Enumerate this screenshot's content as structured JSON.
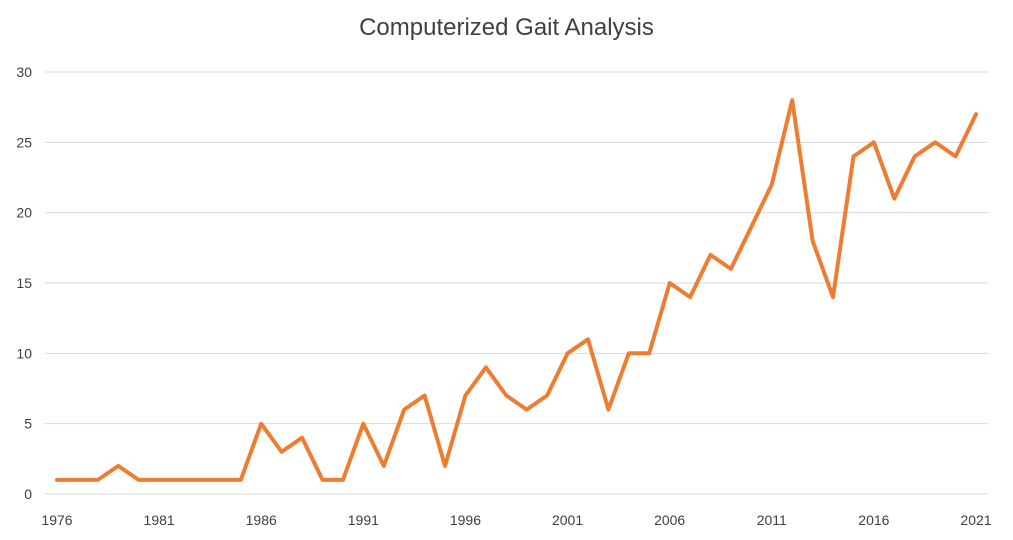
{
  "chart_data": {
    "type": "line",
    "title": "Computerized Gait Analysis",
    "xlabel": "",
    "ylabel": "",
    "ylim": [
      0,
      30
    ],
    "yticks": [
      0,
      5,
      10,
      15,
      20,
      25,
      30
    ],
    "xticks": [
      1976,
      1981,
      1986,
      1991,
      1996,
      2001,
      2006,
      2011,
      2016,
      2021
    ],
    "grid": true,
    "legend": "none",
    "x": [
      1976,
      1977,
      1978,
      1979,
      1980,
      1981,
      1982,
      1983,
      1984,
      1985,
      1986,
      1987,
      1988,
      1989,
      1990,
      1991,
      1992,
      1993,
      1994,
      1995,
      1996,
      1997,
      1998,
      1999,
      2000,
      2001,
      2002,
      2003,
      2004,
      2005,
      2006,
      2007,
      2008,
      2009,
      2010,
      2011,
      2012,
      2013,
      2014,
      2015,
      2016,
      2017,
      2018,
      2019,
      2020,
      2021
    ],
    "series": [
      {
        "color": "#ed7d31",
        "values": [
          1,
          1,
          1,
          2,
          1,
          1,
          1,
          1,
          1,
          1,
          5,
          3,
          4,
          1,
          1,
          5,
          2,
          6,
          7,
          2,
          7,
          9,
          7,
          6,
          7,
          10,
          11,
          6,
          10,
          10,
          15,
          14,
          17,
          16,
          19,
          22,
          28,
          18,
          14,
          24,
          25,
          21,
          24,
          25,
          24,
          27
        ]
      }
    ]
  }
}
